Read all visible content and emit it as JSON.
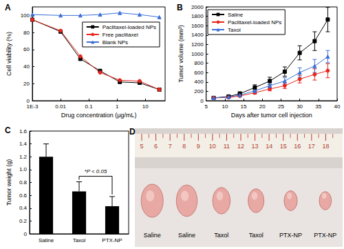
{
  "chart_data": [
    {
      "type": "line",
      "title": "A",
      "log": "x",
      "x_label": "Drug concentration (μg/mL)",
      "y_label": "Cell viability (%)",
      "x": [
        0.001,
        0.01,
        0.05,
        0.25,
        1.25,
        6.25,
        31.25
      ],
      "series": [
        {
          "name": "Paclitaxel-loaded NPs",
          "color": "#000000",
          "marker": "square",
          "line_style": "solid",
          "values": [
            95,
            81,
            49,
            35,
            22,
            21,
            13
          ]
        },
        {
          "name": "Free paclitaxel",
          "color": "#e8261c",
          "marker": "circle",
          "line_style": "solid",
          "values": [
            95,
            82,
            52,
            33,
            24,
            23,
            13
          ]
        },
        {
          "name": "Blank NPs",
          "color": "#3a6fd8",
          "marker": "triangle",
          "line_style": "solid",
          "values": [
            101,
            100,
            100,
            101,
            103,
            101,
            98
          ]
        }
      ],
      "xlim": [
        0.001,
        50
      ],
      "xticks": [
        {
          "value": 0.001,
          "label": "1E-3"
        },
        0.01,
        0.1,
        1,
        10
      ],
      "ylim": [
        0,
        110
      ],
      "yticks": [
        0,
        20,
        40,
        60,
        80,
        100
      ],
      "grid": false,
      "legend": "upper right"
    },
    {
      "type": "line",
      "title": "B",
      "x_label": "Days after tumor cell injection",
      "y_label": "Tumor volume (mm³)",
      "x": [
        7,
        11,
        14,
        18,
        22,
        26,
        30,
        34,
        37.5
      ],
      "series": [
        {
          "name": "Saline",
          "color": "#000000",
          "marker": "square",
          "line_style": "solid",
          "values": [
            60,
            90,
            150,
            280,
            420,
            620,
            1020,
            1270,
            1730
          ],
          "errors": [
            10,
            20,
            40,
            60,
            80,
            100,
            150,
            200,
            260
          ]
        },
        {
          "name": "Paclitaxel-loaded NPs",
          "color": "#e8261c",
          "marker": "circle",
          "line_style": "solid",
          "values": [
            60,
            70,
            100,
            170,
            250,
            320,
            460,
            560,
            640
          ],
          "errors": [
            10,
            15,
            20,
            30,
            40,
            60,
            80,
            120,
            150
          ]
        },
        {
          "name": "Taxol",
          "color": "#3a6fd8",
          "marker": "triangle",
          "line_style": "solid",
          "values": [
            60,
            80,
            120,
            210,
            320,
            420,
            600,
            740,
            940
          ],
          "errors": [
            10,
            15,
            25,
            40,
            50,
            70,
            100,
            140,
            130
          ]
        }
      ],
      "xlim": [
        5,
        40
      ],
      "xticks": [
        5,
        10,
        15,
        20,
        25,
        30,
        35,
        40
      ],
      "ylim": [
        0,
        2000
      ],
      "yticks": [
        0,
        200,
        400,
        600,
        800,
        1000,
        1200,
        1400,
        1600,
        1800,
        2000
      ],
      "grid": false,
      "legend": "upper left"
    },
    {
      "type": "bar",
      "title": "C",
      "y_label": "Tumor weight (g)",
      "categories": [
        "Saline",
        "Taxol",
        "PTX-NP"
      ],
      "values": [
        1.2,
        0.66,
        0.43
      ],
      "errors": [
        0.2,
        0.15,
        0.15
      ],
      "color": "#000000",
      "ylim": [
        0,
        1.6
      ],
      "yticks": [
        0,
        0.2,
        0.4,
        0.6,
        0.8,
        {
          "value": 1,
          "label": "1.0"
        },
        1.2,
        1.4,
        1.6
      ],
      "annotations": [
        {
          "text": "*P < 0.05",
          "between": [
            "Taxol",
            "PTX-NP"
          ]
        }
      ],
      "grid": false
    }
  ],
  "photo": {
    "title": "D",
    "ruler_labels": [
      5,
      6,
      7,
      8,
      9,
      10,
      11,
      12,
      13,
      14,
      15,
      16,
      17,
      18
    ],
    "samples": [
      "Saline",
      "Saline",
      "Taxol",
      "Taxol",
      "PTX-NP",
      "PTX-NP"
    ]
  }
}
